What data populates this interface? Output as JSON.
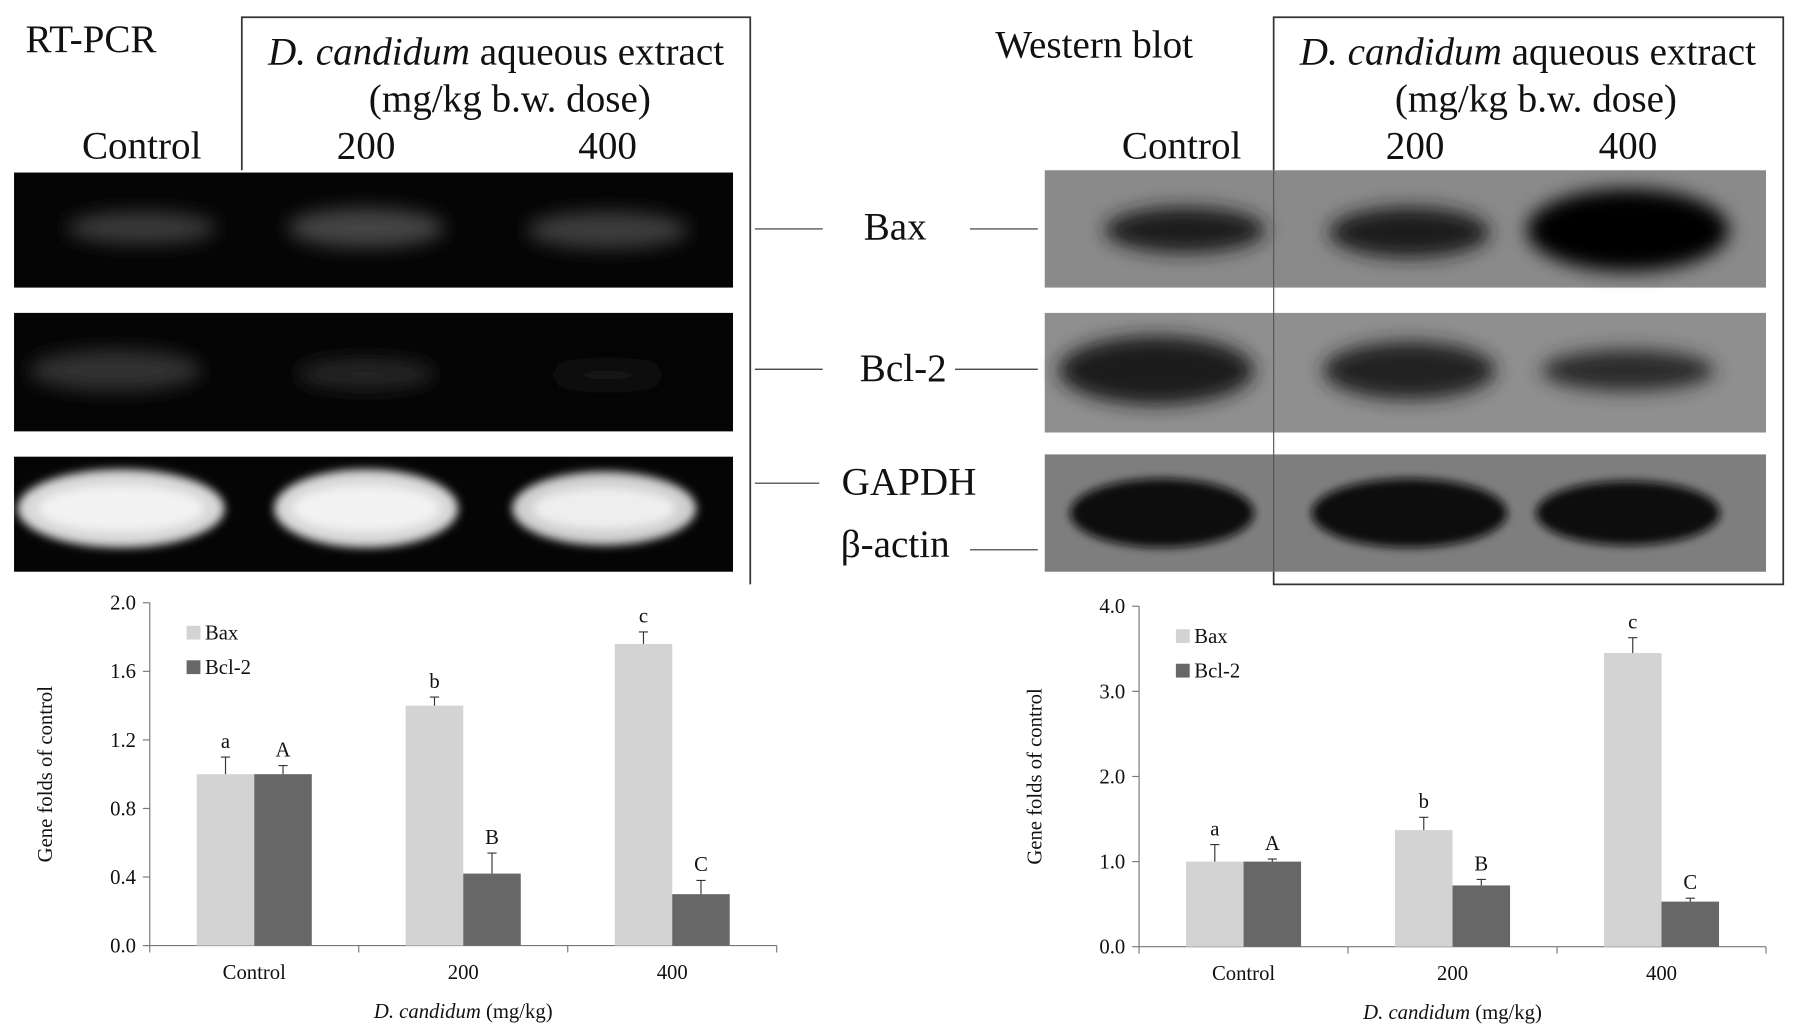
{
  "figure": {
    "left_title": "RT-PCR",
    "right_title": "Western blot",
    "header_italic": "D. candidum",
    "header_rest": "aqueous extract",
    "header_dose": "(mg/kg b.w. dose)",
    "lanes": [
      "Control",
      "200",
      "400"
    ],
    "bands": [
      "Bax",
      "Bcl-2",
      "GAPDH",
      "β-actin"
    ]
  },
  "chart_data": [
    {
      "type": "bar",
      "categories": [
        "Control",
        "200",
        "400"
      ],
      "ylabel": "Gene folds of control",
      "xlabel_italic": "D. candidum",
      "xlabel_rest": "(mg/kg)",
      "ylim": [
        0,
        2.0
      ],
      "yticks": [
        {
          "value": 0,
          "label": "0.0"
        },
        0.4,
        0.8,
        1.2,
        1.6,
        {
          "value": 2,
          "label": "2.0"
        }
      ],
      "series": [
        {
          "name": "Bax",
          "color": "#d3d3d3",
          "values": [
            1.0,
            1.4,
            1.76
          ],
          "errors": [
            0.1,
            0.05,
            0.07
          ],
          "letters": [
            "a",
            "b",
            "c"
          ]
        },
        {
          "name": "Bcl-2",
          "color": "#676767",
          "values": [
            1.0,
            0.42,
            0.3
          ],
          "errors": [
            0.05,
            0.12,
            0.08
          ],
          "letters": [
            "A",
            "B",
            "C"
          ]
        }
      ]
    },
    {
      "type": "bar",
      "categories": [
        "Control",
        "200",
        "400"
      ],
      "ylabel": "Gene folds of control",
      "xlabel_italic": "D. candidum",
      "xlabel_rest": "(mg/kg)",
      "ylim": [
        0,
        4.0
      ],
      "yticks": [
        {
          "value": 0,
          "label": "0.0"
        },
        {
          "value": 1,
          "label": "1.0"
        },
        {
          "value": 2,
          "label": "2.0"
        },
        {
          "value": 3,
          "label": "3.0"
        },
        {
          "value": 4,
          "label": "4.0"
        }
      ],
      "series": [
        {
          "name": "Bax",
          "color": "#d3d3d3",
          "values": [
            1.0,
            1.37,
            3.45
          ],
          "errors": [
            0.2,
            0.15,
            0.18
          ],
          "letters": [
            "a",
            "b",
            "c"
          ]
        },
        {
          "name": "Bcl-2",
          "color": "#676767",
          "values": [
            1.0,
            0.72,
            0.53
          ],
          "errors": [
            0.03,
            0.07,
            0.04
          ],
          "letters": [
            "A",
            "B",
            "C"
          ]
        }
      ]
    }
  ]
}
